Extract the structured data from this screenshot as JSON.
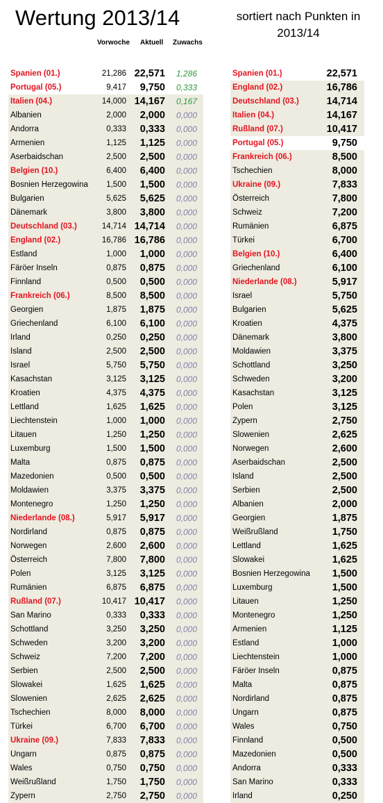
{
  "header": {
    "title": "Wertung 2013/14",
    "subtitle": "sortiert nach Punkten in 2013/14",
    "col_prev": "Vorwoche",
    "col_curr": "Aktuell",
    "col_gain": "Zuwachs"
  },
  "colors": {
    "highlight": "#e3141f",
    "shade": "#eeece1",
    "gain_positive": "#2e9a3a",
    "gain_zero": "#8080a8"
  },
  "left_rows": [
    {
      "name": "Spanien (01.)",
      "prev": "21,286",
      "curr": "22,571",
      "gain": "1,286",
      "hl": true,
      "pos": true,
      "shaded": false
    },
    {
      "name": "Portugal (05.)",
      "prev": "9,417",
      "curr": "9,750",
      "gain": "0,333",
      "hl": true,
      "pos": true,
      "shaded": false
    },
    {
      "name": "Italien (04.)",
      "prev": "14,000",
      "curr": "14,167",
      "gain": "0,167",
      "hl": true,
      "pos": true,
      "shaded": true
    },
    {
      "name": "Albanien",
      "prev": "2,000",
      "curr": "2,000",
      "gain": "0,000",
      "hl": false,
      "pos": false,
      "shaded": true
    },
    {
      "name": "Andorra",
      "prev": "0,333",
      "curr": "0,333",
      "gain": "0,000",
      "hl": false,
      "pos": false,
      "shaded": true
    },
    {
      "name": "Armenien",
      "prev": "1,125",
      "curr": "1,125",
      "gain": "0,000",
      "hl": false,
      "pos": false,
      "shaded": true
    },
    {
      "name": "Aserbaidschan",
      "prev": "2,500",
      "curr": "2,500",
      "gain": "0,000",
      "hl": false,
      "pos": false,
      "shaded": true
    },
    {
      "name": "Belgien (10.)",
      "prev": "6,400",
      "curr": "6,400",
      "gain": "0,000",
      "hl": true,
      "pos": false,
      "shaded": true
    },
    {
      "name": "Bosnien Herzegowina",
      "prev": "1,500",
      "curr": "1,500",
      "gain": "0,000",
      "hl": false,
      "pos": false,
      "shaded": true
    },
    {
      "name": "Bulgarien",
      "prev": "5,625",
      "curr": "5,625",
      "gain": "0,000",
      "hl": false,
      "pos": false,
      "shaded": true
    },
    {
      "name": "Dänemark",
      "prev": "3,800",
      "curr": "3,800",
      "gain": "0,000",
      "hl": false,
      "pos": false,
      "shaded": true
    },
    {
      "name": "Deutschland (03.)",
      "prev": "14,714",
      "curr": "14,714",
      "gain": "0,000",
      "hl": true,
      "pos": false,
      "shaded": true
    },
    {
      "name": "England (02.)",
      "prev": "16,786",
      "curr": "16,786",
      "gain": "0,000",
      "hl": true,
      "pos": false,
      "shaded": true
    },
    {
      "name": "Estland",
      "prev": "1,000",
      "curr": "1,000",
      "gain": "0,000",
      "hl": false,
      "pos": false,
      "shaded": true
    },
    {
      "name": "Färöer Inseln",
      "prev": "0,875",
      "curr": "0,875",
      "gain": "0,000",
      "hl": false,
      "pos": false,
      "shaded": true
    },
    {
      "name": "Finnland",
      "prev": "0,500",
      "curr": "0,500",
      "gain": "0,000",
      "hl": false,
      "pos": false,
      "shaded": true
    },
    {
      "name": "Frankreich (06.)",
      "prev": "8,500",
      "curr": "8,500",
      "gain": "0,000",
      "hl": true,
      "pos": false,
      "shaded": true
    },
    {
      "name": "Georgien",
      "prev": "1,875",
      "curr": "1,875",
      "gain": "0,000",
      "hl": false,
      "pos": false,
      "shaded": true
    },
    {
      "name": "Griechenland",
      "prev": "6,100",
      "curr": "6,100",
      "gain": "0,000",
      "hl": false,
      "pos": false,
      "shaded": true
    },
    {
      "name": "Irland",
      "prev": "0,250",
      "curr": "0,250",
      "gain": "0,000",
      "hl": false,
      "pos": false,
      "shaded": true
    },
    {
      "name": "Island",
      "prev": "2,500",
      "curr": "2,500",
      "gain": "0,000",
      "hl": false,
      "pos": false,
      "shaded": true
    },
    {
      "name": "Israel",
      "prev": "5,750",
      "curr": "5,750",
      "gain": "0,000",
      "hl": false,
      "pos": false,
      "shaded": true
    },
    {
      "name": "Kasachstan",
      "prev": "3,125",
      "curr": "3,125",
      "gain": "0,000",
      "hl": false,
      "pos": false,
      "shaded": true
    },
    {
      "name": "Kroatien",
      "prev": "4,375",
      "curr": "4,375",
      "gain": "0,000",
      "hl": false,
      "pos": false,
      "shaded": true
    },
    {
      "name": "Lettland",
      "prev": "1,625",
      "curr": "1,625",
      "gain": "0,000",
      "hl": false,
      "pos": false,
      "shaded": true
    },
    {
      "name": "Liechtenstein",
      "prev": "1,000",
      "curr": "1,000",
      "gain": "0,000",
      "hl": false,
      "pos": false,
      "shaded": true
    },
    {
      "name": "Litauen",
      "prev": "1,250",
      "curr": "1,250",
      "gain": "0,000",
      "hl": false,
      "pos": false,
      "shaded": true
    },
    {
      "name": "Luxemburg",
      "prev": "1,500",
      "curr": "1,500",
      "gain": "0,000",
      "hl": false,
      "pos": false,
      "shaded": true
    },
    {
      "name": "Malta",
      "prev": "0,875",
      "curr": "0,875",
      "gain": "0,000",
      "hl": false,
      "pos": false,
      "shaded": true
    },
    {
      "name": "Mazedonien",
      "prev": "0,500",
      "curr": "0,500",
      "gain": "0,000",
      "hl": false,
      "pos": false,
      "shaded": true
    },
    {
      "name": "Moldawien",
      "prev": "3,375",
      "curr": "3,375",
      "gain": "0,000",
      "hl": false,
      "pos": false,
      "shaded": true
    },
    {
      "name": "Montenegro",
      "prev": "1,250",
      "curr": "1,250",
      "gain": "0,000",
      "hl": false,
      "pos": false,
      "shaded": true
    },
    {
      "name": "Niederlande (08.)",
      "prev": "5,917",
      "curr": "5,917",
      "gain": "0,000",
      "hl": true,
      "pos": false,
      "shaded": true
    },
    {
      "name": "Nordirland",
      "prev": "0,875",
      "curr": "0,875",
      "gain": "0,000",
      "hl": false,
      "pos": false,
      "shaded": true
    },
    {
      "name": "Norwegen",
      "prev": "2,600",
      "curr": "2,600",
      "gain": "0,000",
      "hl": false,
      "pos": false,
      "shaded": true
    },
    {
      "name": "Österreich",
      "prev": "7,800",
      "curr": "7,800",
      "gain": "0,000",
      "hl": false,
      "pos": false,
      "shaded": true
    },
    {
      "name": "Polen",
      "prev": "3,125",
      "curr": "3,125",
      "gain": "0,000",
      "hl": false,
      "pos": false,
      "shaded": true
    },
    {
      "name": "Rumänien",
      "prev": "6,875",
      "curr": "6,875",
      "gain": "0,000",
      "hl": false,
      "pos": false,
      "shaded": true
    },
    {
      "name": "Rußland (07.)",
      "prev": "10,417",
      "curr": "10,417",
      "gain": "0,000",
      "hl": true,
      "pos": false,
      "shaded": true
    },
    {
      "name": "San Marino",
      "prev": "0,333",
      "curr": "0,333",
      "gain": "0,000",
      "hl": false,
      "pos": false,
      "shaded": true
    },
    {
      "name": "Schottland",
      "prev": "3,250",
      "curr": "3,250",
      "gain": "0,000",
      "hl": false,
      "pos": false,
      "shaded": true
    },
    {
      "name": "Schweden",
      "prev": "3,200",
      "curr": "3,200",
      "gain": "0,000",
      "hl": false,
      "pos": false,
      "shaded": true
    },
    {
      "name": "Schweiz",
      "prev": "7,200",
      "curr": "7,200",
      "gain": "0,000",
      "hl": false,
      "pos": false,
      "shaded": true
    },
    {
      "name": "Serbien",
      "prev": "2,500",
      "curr": "2,500",
      "gain": "0,000",
      "hl": false,
      "pos": false,
      "shaded": true
    },
    {
      "name": "Slowakei",
      "prev": "1,625",
      "curr": "1,625",
      "gain": "0,000",
      "hl": false,
      "pos": false,
      "shaded": true
    },
    {
      "name": "Slowenien",
      "prev": "2,625",
      "curr": "2,625",
      "gain": "0,000",
      "hl": false,
      "pos": false,
      "shaded": true
    },
    {
      "name": "Tschechien",
      "prev": "8,000",
      "curr": "8,000",
      "gain": "0,000",
      "hl": false,
      "pos": false,
      "shaded": true
    },
    {
      "name": "Türkei",
      "prev": "6,700",
      "curr": "6,700",
      "gain": "0,000",
      "hl": false,
      "pos": false,
      "shaded": true
    },
    {
      "name": "Ukraine (09.)",
      "prev": "7,833",
      "curr": "7,833",
      "gain": "0,000",
      "hl": true,
      "pos": false,
      "shaded": true
    },
    {
      "name": "Ungarn",
      "prev": "0,875",
      "curr": "0,875",
      "gain": "0,000",
      "hl": false,
      "pos": false,
      "shaded": true
    },
    {
      "name": "Wales",
      "prev": "0,750",
      "curr": "0,750",
      "gain": "0,000",
      "hl": false,
      "pos": false,
      "shaded": true
    },
    {
      "name": "Weißrußland",
      "prev": "1,750",
      "curr": "1,750",
      "gain": "0,000",
      "hl": false,
      "pos": false,
      "shaded": true
    },
    {
      "name": "Zypern",
      "prev": "2,750",
      "curr": "2,750",
      "gain": "0,000",
      "hl": false,
      "pos": false,
      "shaded": true
    }
  ],
  "right_rows": [
    {
      "name": "Spanien (01.)",
      "curr": "22,571",
      "hl": true,
      "shaded": false
    },
    {
      "name": "England (02.)",
      "curr": "16,786",
      "hl": true,
      "shaded": true
    },
    {
      "name": "Deutschland (03.)",
      "curr": "14,714",
      "hl": true,
      "shaded": true
    },
    {
      "name": "Italien (04.)",
      "curr": "14,167",
      "hl": true,
      "shaded": true
    },
    {
      "name": "Rußland (07.)",
      "curr": "10,417",
      "hl": true,
      "shaded": true
    },
    {
      "name": "Portugal (05.)",
      "curr": "9,750",
      "hl": true,
      "shaded": false
    },
    {
      "name": "Frankreich (06.)",
      "curr": "8,500",
      "hl": true,
      "shaded": true
    },
    {
      "name": "Tschechien",
      "curr": "8,000",
      "hl": false,
      "shaded": true
    },
    {
      "name": "Ukraine (09.)",
      "curr": "7,833",
      "hl": true,
      "shaded": true
    },
    {
      "name": "Österreich",
      "curr": "7,800",
      "hl": false,
      "shaded": true
    },
    {
      "name": "Schweiz",
      "curr": "7,200",
      "hl": false,
      "shaded": true
    },
    {
      "name": "Rumänien",
      "curr": "6,875",
      "hl": false,
      "shaded": true
    },
    {
      "name": "Türkei",
      "curr": "6,700",
      "hl": false,
      "shaded": true
    },
    {
      "name": "Belgien (10.)",
      "curr": "6,400",
      "hl": true,
      "shaded": true
    },
    {
      "name": "Griechenland",
      "curr": "6,100",
      "hl": false,
      "shaded": true
    },
    {
      "name": "Niederlande (08.)",
      "curr": "5,917",
      "hl": true,
      "shaded": true
    },
    {
      "name": "Israel",
      "curr": "5,750",
      "hl": false,
      "shaded": true
    },
    {
      "name": "Bulgarien",
      "curr": "5,625",
      "hl": false,
      "shaded": true
    },
    {
      "name": "Kroatien",
      "curr": "4,375",
      "hl": false,
      "shaded": true
    },
    {
      "name": "Dänemark",
      "curr": "3,800",
      "hl": false,
      "shaded": true
    },
    {
      "name": "Moldawien",
      "curr": "3,375",
      "hl": false,
      "shaded": true
    },
    {
      "name": "Schottland",
      "curr": "3,250",
      "hl": false,
      "shaded": true
    },
    {
      "name": "Schweden",
      "curr": "3,200",
      "hl": false,
      "shaded": true
    },
    {
      "name": "Kasachstan",
      "curr": "3,125",
      "hl": false,
      "shaded": true
    },
    {
      "name": "Polen",
      "curr": "3,125",
      "hl": false,
      "shaded": true
    },
    {
      "name": "Zypern",
      "curr": "2,750",
      "hl": false,
      "shaded": true
    },
    {
      "name": "Slowenien",
      "curr": "2,625",
      "hl": false,
      "shaded": true
    },
    {
      "name": "Norwegen",
      "curr": "2,600",
      "hl": false,
      "shaded": true
    },
    {
      "name": "Aserbaidschan",
      "curr": "2,500",
      "hl": false,
      "shaded": true
    },
    {
      "name": "Island",
      "curr": "2,500",
      "hl": false,
      "shaded": true
    },
    {
      "name": "Serbien",
      "curr": "2,500",
      "hl": false,
      "shaded": true
    },
    {
      "name": "Albanien",
      "curr": "2,000",
      "hl": false,
      "shaded": true
    },
    {
      "name": "Georgien",
      "curr": "1,875",
      "hl": false,
      "shaded": true
    },
    {
      "name": "Weißrußland",
      "curr": "1,750",
      "hl": false,
      "shaded": true
    },
    {
      "name": "Lettland",
      "curr": "1,625",
      "hl": false,
      "shaded": true
    },
    {
      "name": "Slowakei",
      "curr": "1,625",
      "hl": false,
      "shaded": true
    },
    {
      "name": "Bosnien Herzegowina",
      "curr": "1,500",
      "hl": false,
      "shaded": true
    },
    {
      "name": "Luxemburg",
      "curr": "1,500",
      "hl": false,
      "shaded": true
    },
    {
      "name": "Litauen",
      "curr": "1,250",
      "hl": false,
      "shaded": true
    },
    {
      "name": "Montenegro",
      "curr": "1,250",
      "hl": false,
      "shaded": true
    },
    {
      "name": "Armenien",
      "curr": "1,125",
      "hl": false,
      "shaded": true
    },
    {
      "name": "Estland",
      "curr": "1,000",
      "hl": false,
      "shaded": true
    },
    {
      "name": "Liechtenstein",
      "curr": "1,000",
      "hl": false,
      "shaded": true
    },
    {
      "name": "Färöer Inseln",
      "curr": "0,875",
      "hl": false,
      "shaded": true
    },
    {
      "name": "Malta",
      "curr": "0,875",
      "hl": false,
      "shaded": true
    },
    {
      "name": "Nordirland",
      "curr": "0,875",
      "hl": false,
      "shaded": true
    },
    {
      "name": "Ungarn",
      "curr": "0,875",
      "hl": false,
      "shaded": true
    },
    {
      "name": "Wales",
      "curr": "0,750",
      "hl": false,
      "shaded": true
    },
    {
      "name": "Finnland",
      "curr": "0,500",
      "hl": false,
      "shaded": true
    },
    {
      "name": "Mazedonien",
      "curr": "0,500",
      "hl": false,
      "shaded": true
    },
    {
      "name": "Andorra",
      "curr": "0,333",
      "hl": false,
      "shaded": true
    },
    {
      "name": "San Marino",
      "curr": "0,333",
      "hl": false,
      "shaded": true
    },
    {
      "name": "Irland",
      "curr": "0,250",
      "hl": false,
      "shaded": true
    }
  ]
}
